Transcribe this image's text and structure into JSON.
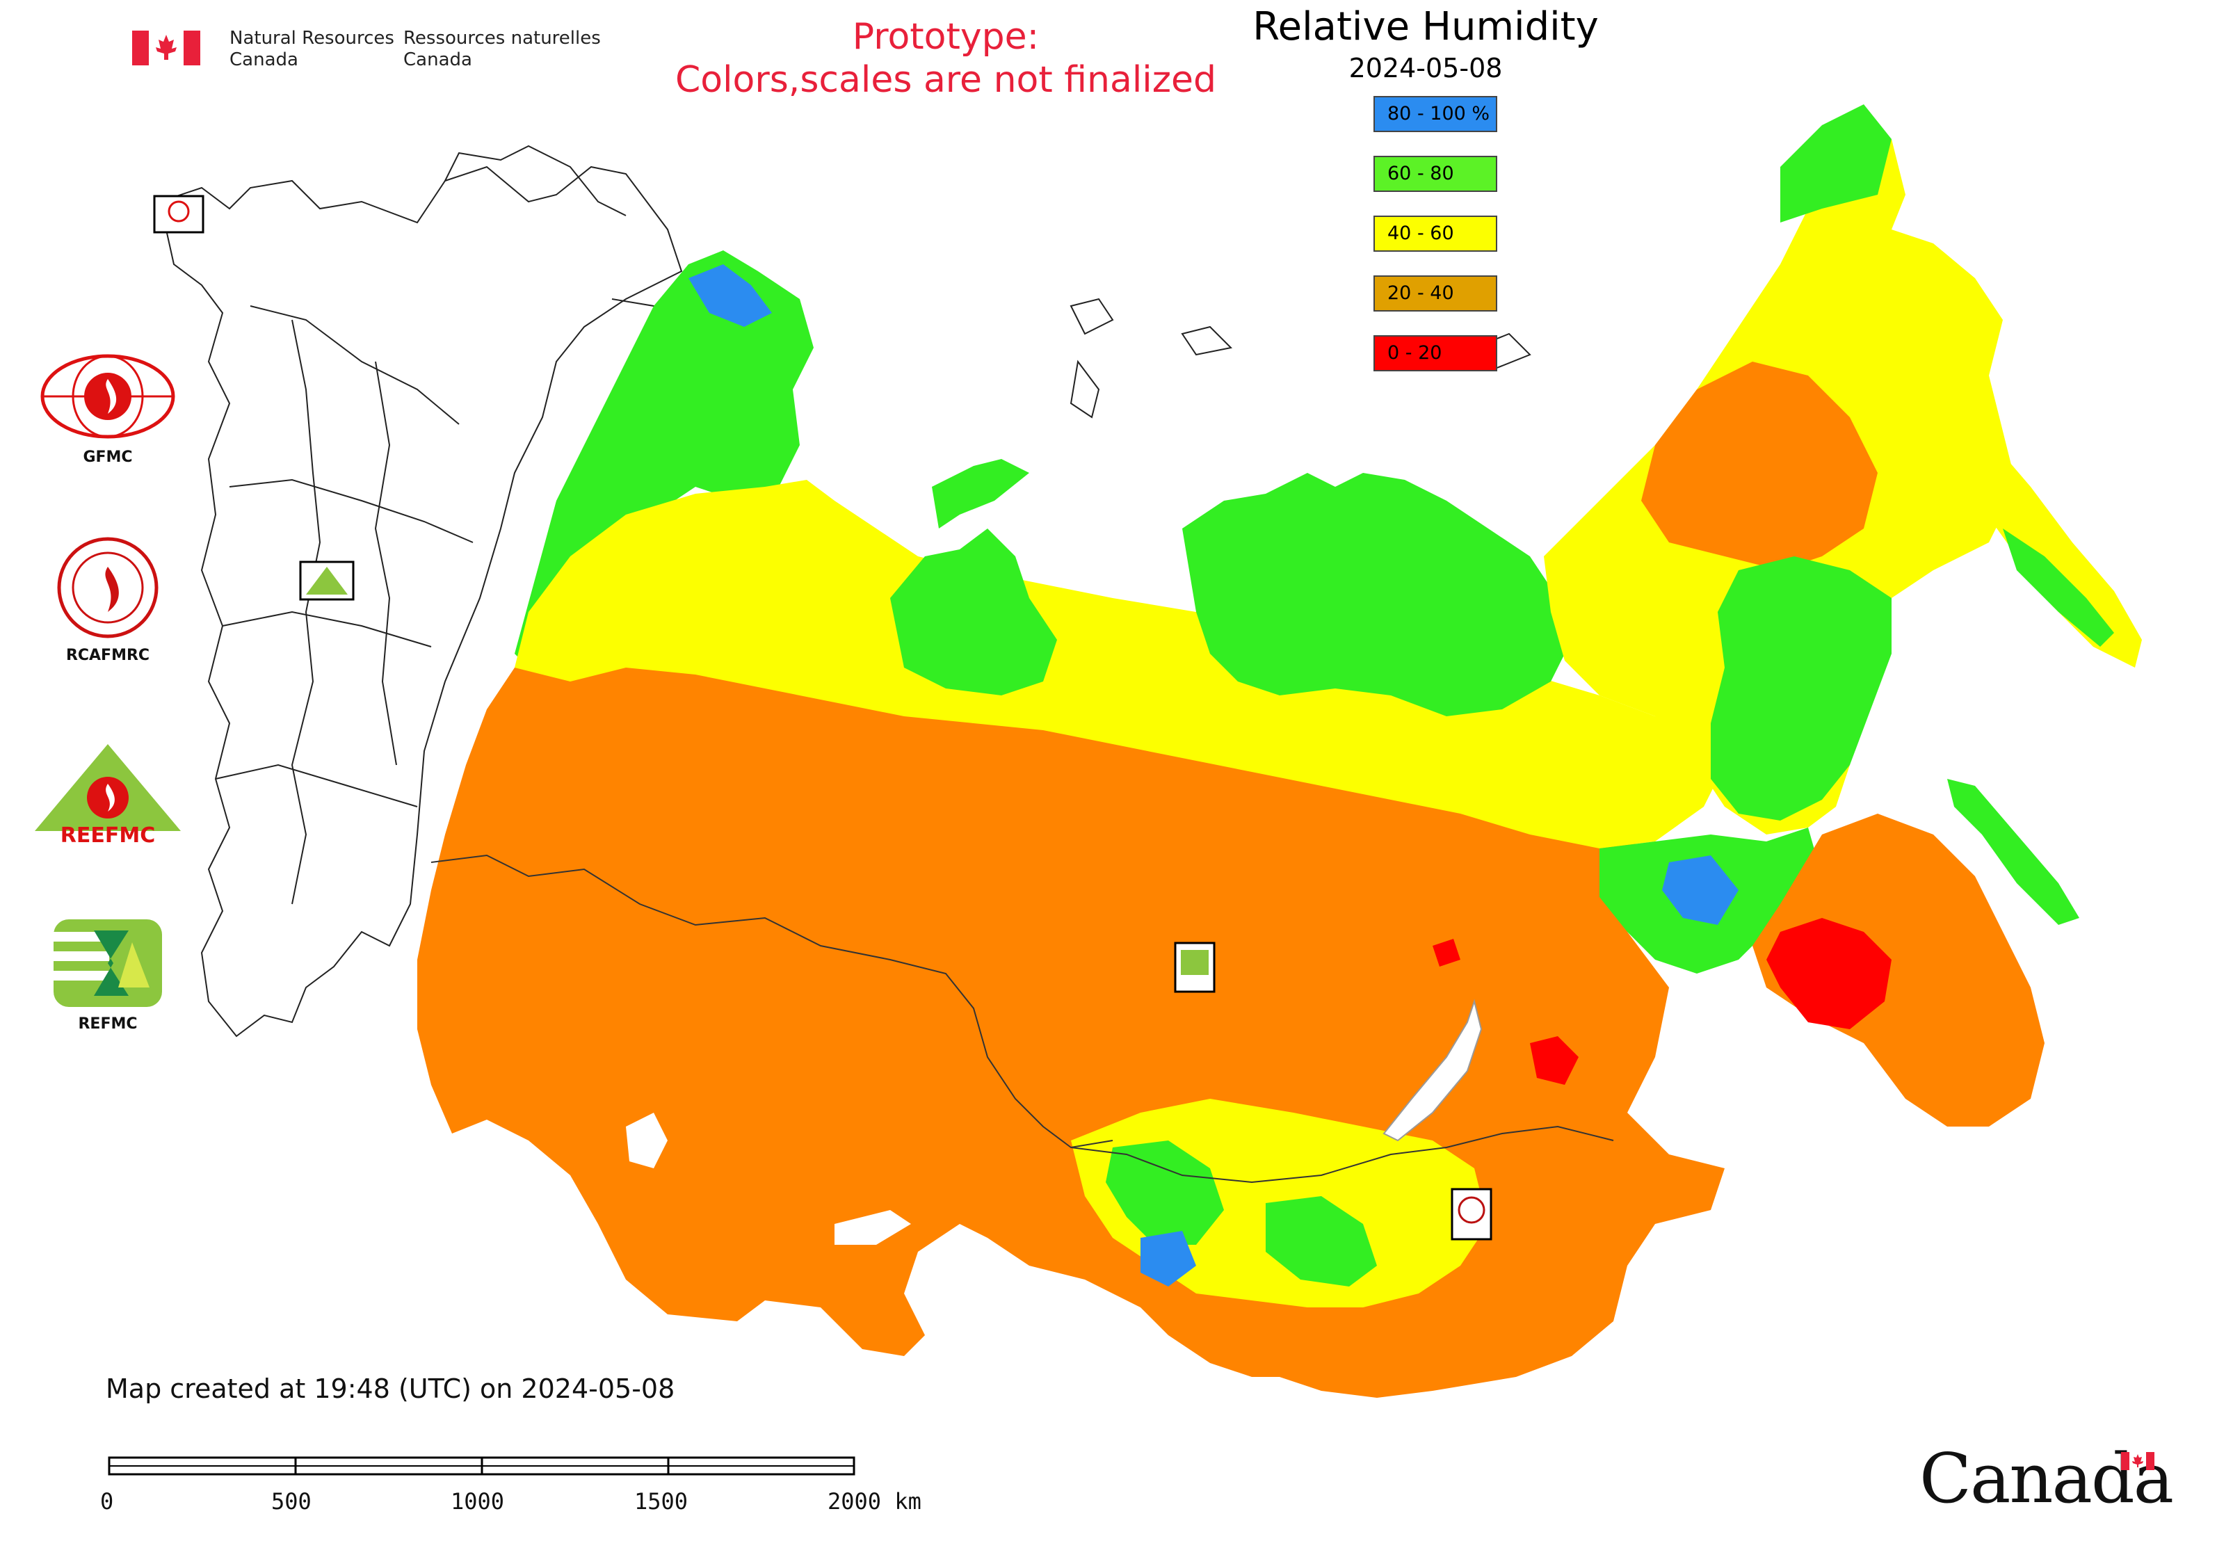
{
  "header": {
    "agency_en": [
      "Natural Resources",
      "Canada"
    ],
    "agency_fr": [
      "Ressources naturelles",
      "Canada"
    ],
    "prototype_line1": "Prototype:",
    "prototype_line2": "Colors,scales are not finalized",
    "title": "Relative Humidity",
    "date": "2024-05-08"
  },
  "legend": [
    {
      "label": "80 - 100 %",
      "color": "#2b8cf0"
    },
    {
      "label": "60 - 80",
      "color": "#5cf226"
    },
    {
      "label": "40 - 60",
      "color": "#fcff00"
    },
    {
      "label": "20 - 40",
      "color": "#e0a000"
    },
    {
      "label": "0 - 20",
      "color": "#ff0000"
    }
  ],
  "map_colors": {
    "very_humid": "#2b8cf0",
    "humid": "#33ee22",
    "moderate": "#fcff00",
    "dry": "#ff8400",
    "very_dry": "#ff0000"
  },
  "logos": [
    {
      "caption": "GFMC",
      "icon": "gfmc-globe-flame-icon"
    },
    {
      "caption": "RCAFMRC",
      "icon": "rcafmrc-seal-icon"
    },
    {
      "caption": "",
      "icon": "reefmc-triangle-icon",
      "text": "REEFMC"
    },
    {
      "caption": "REFMC",
      "icon": "refmc-sigma-icon"
    }
  ],
  "footer": {
    "created": "Map created at 19:48 (UTC) on 2024-05-08",
    "scale_labels": [
      "0",
      "500",
      "1000",
      "1500",
      "2000 km"
    ],
    "wordmark": "Canada"
  }
}
